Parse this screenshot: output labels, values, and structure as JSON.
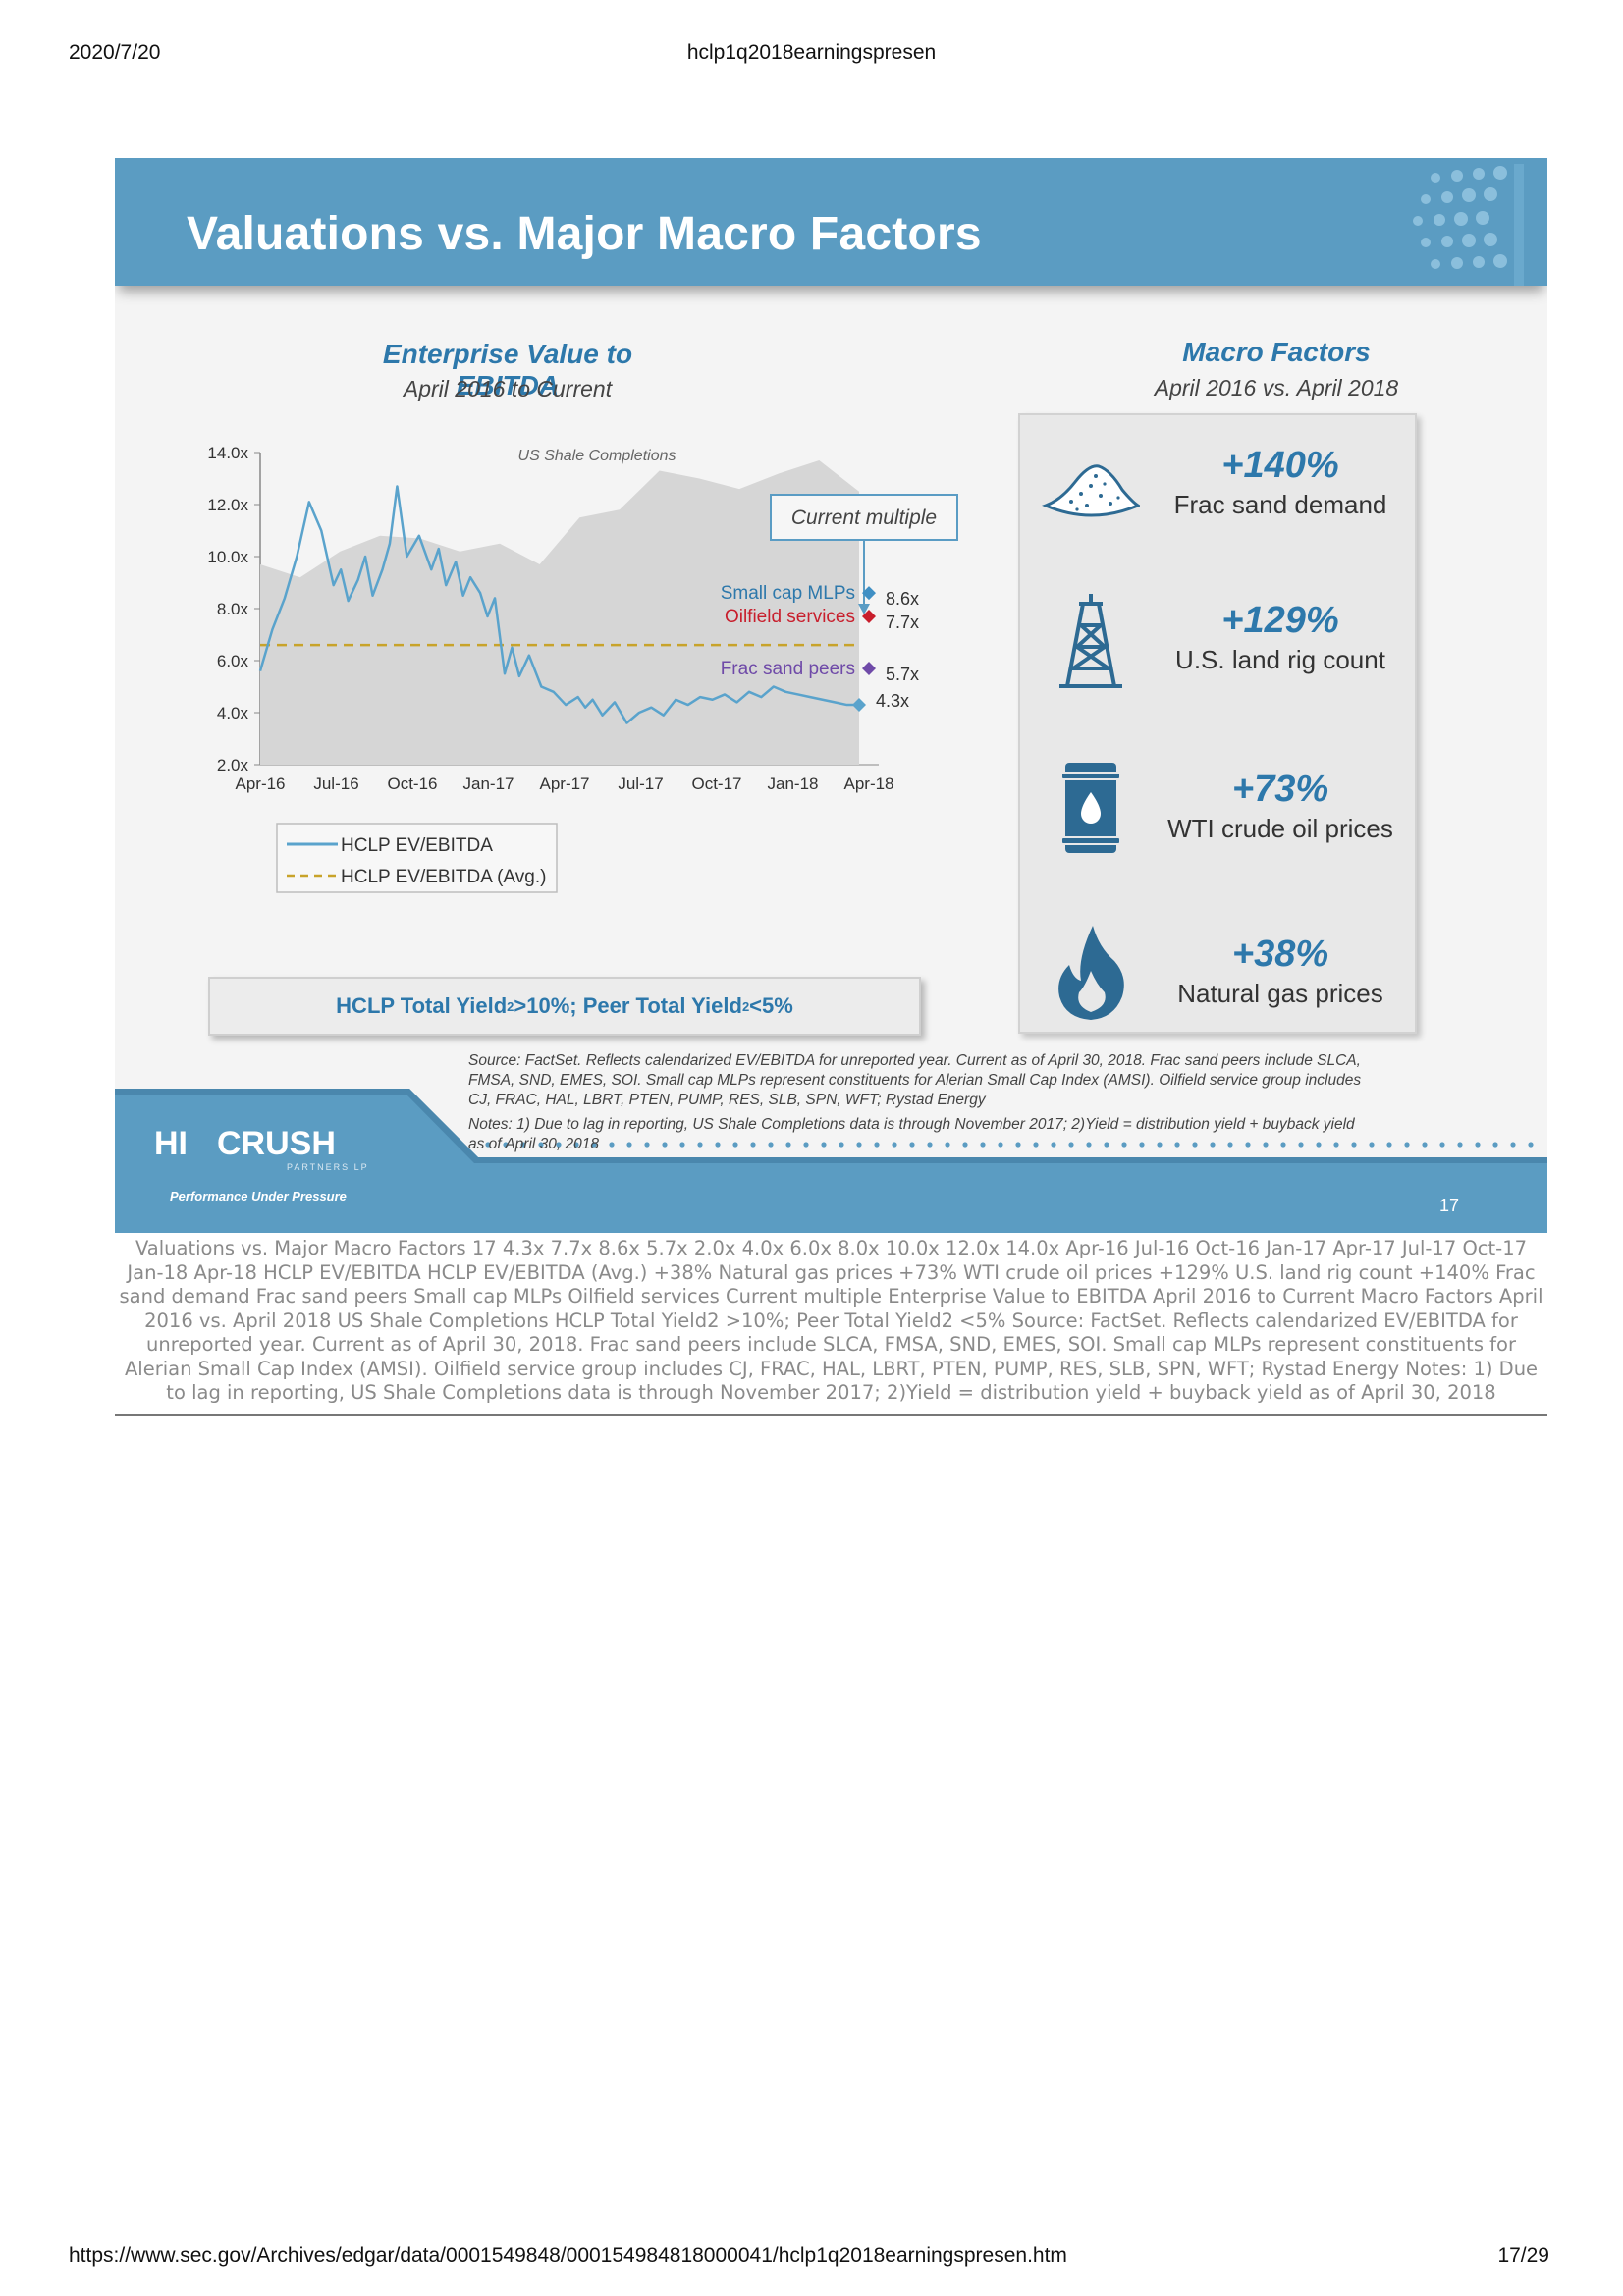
{
  "browser": {
    "date": "2020/7/20",
    "title": "hclp1q2018earningspresen",
    "url": "https://www.sec.gov/Archives/edgar/data/0001549848/000154984818000041/hclp1q2018earningspresen.htm",
    "page": "17/29"
  },
  "slide": {
    "title": "Valuations vs. Major Macro Factors",
    "number": "17",
    "logo": {
      "hi": "HI",
      "crush": "CRUSH",
      "partners": "PARTNERS LP",
      "tagline": "Performance Under Pressure"
    },
    "colors": {
      "banner": "#5b9cc2",
      "accent": "#2d78ab",
      "line": "#5aa3cc",
      "avg": "#c8a32a",
      "oilfield": "#c81e2c",
      "frac": "#6f4aa8"
    }
  },
  "chart_data": {
    "type": "line",
    "title": "Enterprise Value to EBITDA",
    "subtitle": "April 2016 to Current",
    "x_ticks": [
      "Apr-16",
      "Jul-16",
      "Oct-16",
      "Jan-17",
      "Apr-17",
      "Jul-17",
      "Oct-17",
      "Jan-18",
      "Apr-18"
    ],
    "y_ticks": [
      "2.0x",
      "4.0x",
      "6.0x",
      "8.0x",
      "10.0x",
      "12.0x",
      "14.0x"
    ],
    "ylim": [
      2,
      14
    ],
    "background_area": {
      "name": "US Shale Completions",
      "values": [
        9.7,
        9.2,
        10.2,
        10.8,
        10.7,
        10.2,
        10.5,
        9.7,
        11.5,
        11.8,
        13.3,
        13.0,
        12.6,
        13.2,
        13.7,
        12.5
      ]
    },
    "series": [
      {
        "name": "HCLP EV/EBITDA",
        "x": [
          0,
          0.5,
          1,
          1.5,
          2,
          2.5,
          3,
          3.3,
          3.6,
          4,
          4.3,
          4.6,
          5,
          5.3,
          5.6,
          6,
          6.5,
          7,
          7.3,
          7.6,
          8,
          8.3,
          8.6,
          9,
          9.3,
          9.6,
          10,
          10.3,
          10.6,
          11,
          11.5,
          12,
          12.5,
          13,
          13.3,
          13.6,
          14,
          14.5,
          15,
          15.5,
          16,
          16.5,
          17,
          17.5,
          18,
          18.5,
          19,
          19.5,
          20,
          20.5,
          21,
          21.5,
          22,
          22.5,
          23,
          23.5,
          24,
          24.5
        ],
        "values": [
          5.6,
          7.2,
          8.4,
          10.0,
          12.1,
          11.0,
          8.9,
          9.5,
          8.3,
          9.1,
          10.0,
          8.5,
          9.5,
          10.5,
          12.7,
          10.0,
          10.8,
          9.5,
          10.3,
          8.9,
          9.8,
          8.5,
          9.2,
          8.6,
          7.7,
          8.4,
          5.5,
          6.5,
          5.4,
          6.2,
          5.0,
          4.8,
          4.3,
          4.6,
          4.2,
          4.5,
          3.9,
          4.4,
          3.6,
          4.0,
          4.2,
          3.9,
          4.5,
          4.3,
          4.6,
          4.5,
          4.7,
          4.4,
          4.8,
          4.6,
          5.0,
          4.8,
          4.7,
          4.6,
          4.5,
          4.4,
          4.3,
          4.3
        ]
      },
      {
        "name": "HCLP EV/EBITDA (Avg.)",
        "value": 6.6
      }
    ],
    "annotations": {
      "current_multiple": "Current multiple",
      "small_cap_mlps": {
        "label": "Small cap MLPs",
        "value": "8.6x"
      },
      "oilfield_services": {
        "label": "Oilfield services",
        "value": "7.7x"
      },
      "frac_sand_peers": {
        "label": "Frac sand peers",
        "value": "5.7x"
      },
      "hclp_current": "4.3x"
    },
    "legend": [
      "HCLP EV/EBITDA",
      "HCLP EV/EBITDA (Avg.)"
    ]
  },
  "yield_box": {
    "prefix": "HCLP Total Yield",
    "sup1": "2",
    "mid": " >10%; Peer Total Yield",
    "sup2": "2",
    "suffix": " <5%"
  },
  "macro": {
    "title": "Macro Factors",
    "subtitle": "April 2016 vs. April 2018",
    "items": [
      {
        "icon": "sand-pile-icon",
        "pct": "+140%",
        "label": "Frac sand demand"
      },
      {
        "icon": "oil-rig-icon",
        "pct": "+129%",
        "label": "U.S. land rig count"
      },
      {
        "icon": "oil-barrel-icon",
        "pct": "+73%",
        "label": "WTI crude oil prices"
      },
      {
        "icon": "flame-icon",
        "pct": "+38%",
        "label": "Natural gas prices"
      }
    ]
  },
  "source": {
    "line1": "Source: FactSet. Reflects calendarized EV/EBITDA for unreported year. Current as of April 30, 2018. Frac sand peers include SLCA,",
    "line2": "FMSA, SND, EMES, SOI. Small cap MLPs represent constituents for Alerian Small Cap Index (AMSI). Oilfield service group includes",
    "line3": "CJ, FRAC, HAL, LBRT, PTEN, PUMP, RES, SLB, SPN, WFT; Rystad Energy",
    "notes1": "Notes: 1) Due to lag in reporting, US Shale Completions data is through November 2017; 2)Yield = distribution yield + buyback yield",
    "notes2": "as of April 30, 2018"
  },
  "ocr_text": "Valuations vs. Major Macro Factors  17  4.3x  7.7x  8.6x  5.7x  2.0x 4.0x 6.0x 8.0x 10.0x 12.0x 14.0x Apr-16 Jul-16 Oct-16 Jan-17 Apr-17 Jul-17 Oct-17 Jan-18 Apr-18  HCLP EV/EBITDA HCLP EV/EBITDA (Avg.) +38%  Natural gas prices  +73%  WTI crude oil prices  +129%  U.S. land rig count  +140%  Frac sand demand  Frac sand peers  Small cap MLPs  Oilfield services  Current multiple  Enterprise Value to EBITDA  April 2016 to Current  Macro Factors  April 2016 vs. April 2018  US Shale Completions  HCLP Total Yield2 >10%; Peer Total Yield2 <5%  Source: FactSet. Reflects calendarized EV/EBITDA for unreported year. Current as of April 30, 2018. Frac sand peers include SLCA,  FMSA, SND, EMES, SOI. Small cap MLPs represent constituents for Alerian Small Cap Index (AMSI). Oilfield service group includes CJ, FRAC, HAL, LBRT, PTEN, PUMP, RES, SLB, SPN, WFT; Rystad Energy  Notes: 1) Due to lag in reporting, US Shale Completions data is through November 2017; 2)Yield = distribution yield + buyback yield  as of April 30, 2018"
}
